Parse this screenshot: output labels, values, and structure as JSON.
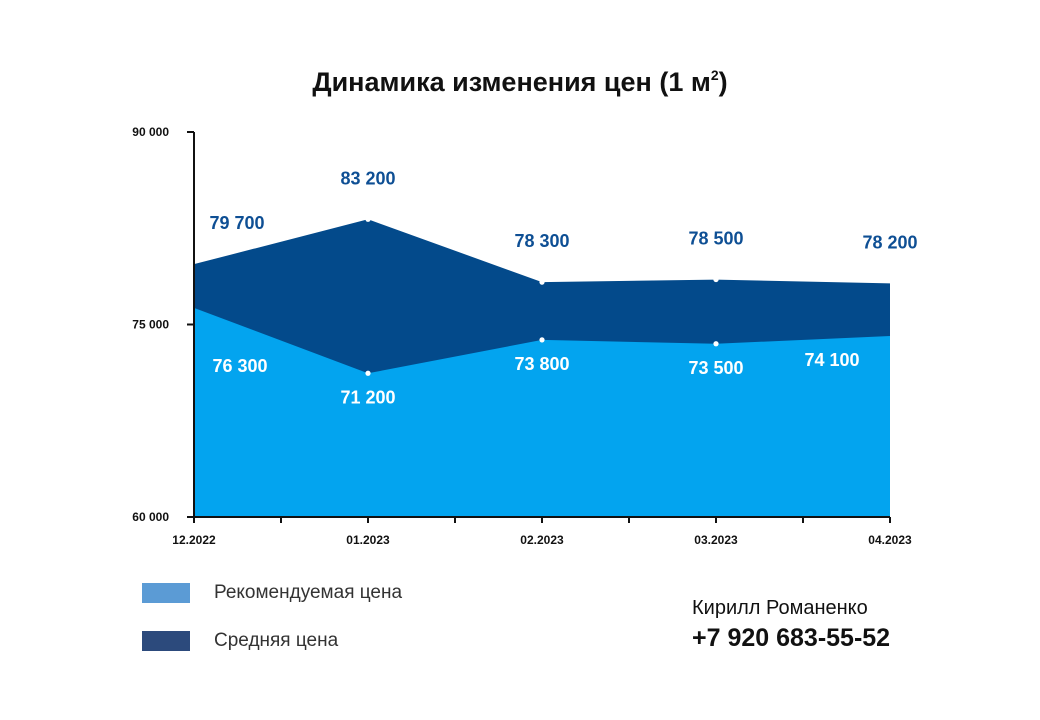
{
  "chart_data": {
    "type": "area",
    "title": "Динамика изменения цен (1 м",
    "title_superscript": "2",
    "title_suffix": ")",
    "x": [
      "12.2022",
      "01.2023",
      "02.2023",
      "03.2023",
      "04.2023"
    ],
    "ylim": [
      60000,
      90000
    ],
    "yticks": [
      60000,
      75000,
      90000
    ],
    "ytick_labels": [
      "60 000",
      "75 000",
      "90 000"
    ],
    "grid": false,
    "series": [
      {
        "name": "Рекомендуемая цена",
        "values": [
          76300,
          71200,
          73800,
          73500,
          74100
        ],
        "labels": [
          "76 300",
          "71 200",
          "73 800",
          "73 500",
          "74 100"
        ],
        "color": "#03a4ef"
      },
      {
        "name": "Средняя цена",
        "values": [
          79700,
          83200,
          78300,
          78500,
          78200
        ],
        "labels": [
          "79 700",
          "83 200",
          "78 300",
          "78 500",
          "78 200"
        ],
        "color": "#034a8b"
      }
    ],
    "legend": {
      "placement": "bottom-left",
      "items": [
        {
          "label": "Рекомендуемая цена",
          "color": "#5b9bd5"
        },
        {
          "label": "Средняя цена",
          "color": "#2c4a7c"
        }
      ]
    }
  },
  "contact": {
    "name": "Кирилл Романенко",
    "phone": "+7 920 683-55-52"
  }
}
